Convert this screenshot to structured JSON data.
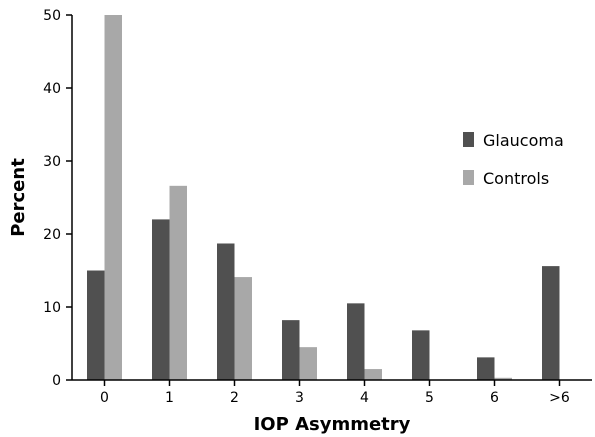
{
  "chart_data": {
    "type": "bar",
    "xlabel": "IOP Asymmetry",
    "ylabel": "Percent",
    "categories": [
      "0",
      "1",
      "2",
      "3",
      "4",
      "5",
      "6",
      ">6"
    ],
    "ylim": [
      0,
      50
    ],
    "yticks": [
      0,
      10,
      20,
      30,
      40,
      50
    ],
    "grid": false,
    "legend_position": "right",
    "series": [
      {
        "name": "Glaucoma",
        "color": "#505050",
        "values": [
          15,
          22,
          18.7,
          8.2,
          10.5,
          6.8,
          3.1,
          15.6
        ]
      },
      {
        "name": "Controls",
        "color": "#a8a8a8",
        "values": [
          50,
          26.6,
          14.1,
          4.5,
          1.5,
          0,
          0.3,
          0
        ]
      }
    ]
  }
}
